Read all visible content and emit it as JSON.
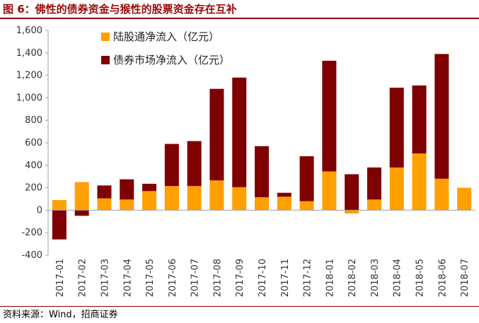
{
  "figure": {
    "title": "图 6：佛性的债券资金与猴性的股票资金存在互补",
    "source": "资料来源：Wind，招商证券"
  },
  "colors": {
    "title": "#9b0a0a",
    "rule": "#8b0000",
    "stock_series": "#ffa000",
    "bond_series": "#7f0000"
  },
  "chart_data": {
    "type": "bar",
    "stacked": true,
    "categories": [
      "2017-01",
      "2017-02",
      "2017-03",
      "2017-04",
      "2017-05",
      "2017-06",
      "2017-07",
      "2017-08",
      "2017-09",
      "2017-10",
      "2017-11",
      "2017-12",
      "2018-01",
      "2018-02",
      "2018-03",
      "2018-04",
      "2018-05",
      "2018-06",
      "2018-07"
    ],
    "series": [
      {
        "name": "陆股通净流入（亿元）",
        "color": "#ffa000",
        "values": [
          90,
          250,
          105,
          95,
          170,
          215,
          215,
          265,
          205,
          115,
          120,
          80,
          345,
          -30,
          95,
          380,
          505,
          280,
          200
        ]
      },
      {
        "name": "债券市场净流入（亿元）",
        "color": "#7f0000",
        "values": [
          -260,
          -50,
          115,
          180,
          65,
          375,
          400,
          815,
          975,
          455,
          35,
          400,
          985,
          320,
          285,
          710,
          605,
          1110,
          0
        ]
      }
    ],
    "ylim": [
      -400,
      1600
    ],
    "yticks": [
      -400,
      -200,
      0,
      200,
      400,
      600,
      800,
      1000,
      1200,
      1400,
      1600
    ],
    "ytick_labels": [
      "-400",
      "-200",
      "0",
      "200",
      "400",
      "600",
      "800",
      "1,000",
      "1,200",
      "1,400",
      "1,600"
    ],
    "grid": false,
    "legend_position": "top-left"
  }
}
